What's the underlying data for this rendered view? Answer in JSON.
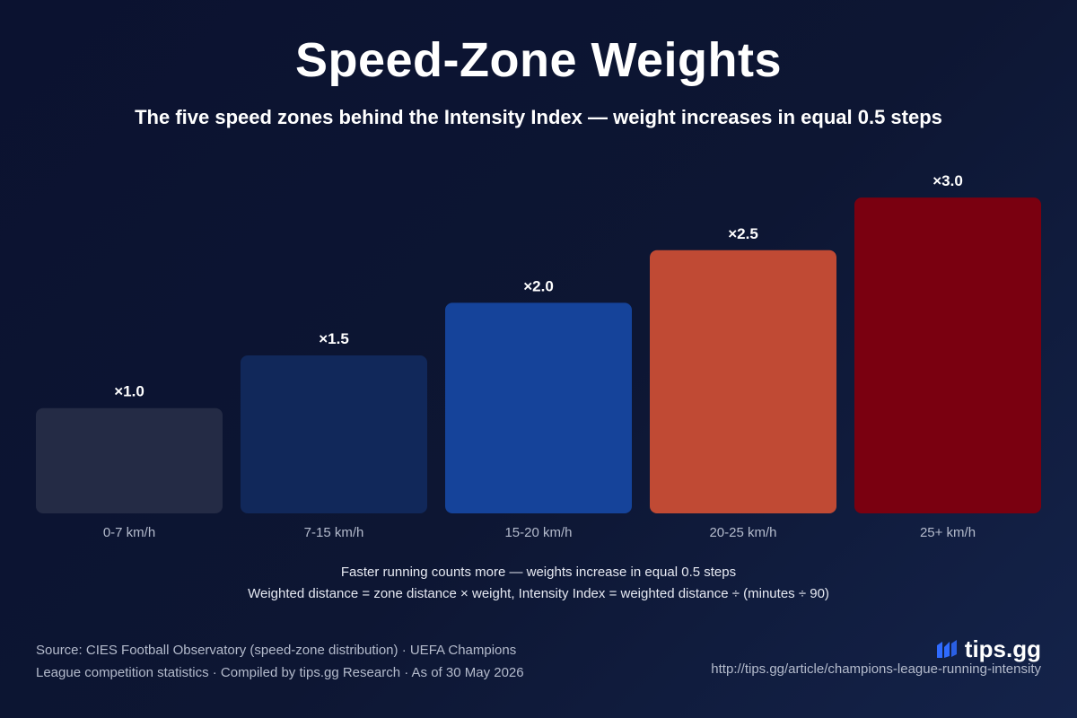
{
  "header": {
    "title": "Speed-Zone Weights",
    "subtitle": "The five speed zones behind the Intensity Index — weight increases in equal 0.5 steps"
  },
  "chart_data": {
    "type": "bar",
    "categories": [
      "0-7 km/h",
      "7-15 km/h",
      "15-20 km/h",
      "20-25 km/h",
      "25+ km/h"
    ],
    "values": [
      1.0,
      1.5,
      2.0,
      2.5,
      3.0
    ],
    "data_labels": [
      "×1.0",
      "×1.5",
      "×2.0",
      "×2.5",
      "×3.0"
    ],
    "colors": [
      "#242b45",
      "#11285a",
      "#15439a",
      "#c04a34",
      "#7a0010"
    ],
    "grid": false,
    "legend": "none"
  },
  "notes": {
    "line1": "Faster running counts more — weights increase in equal 0.5 steps",
    "line2": "Weighted distance = zone distance × weight, Intensity Index = weighted distance ÷ (minutes ÷ 90)"
  },
  "footer": {
    "source_line1": "Source: CIES Football Observatory (speed-zone distribution) · UEFA Champions",
    "source_line2": "League competition statistics · Compiled by tips.gg Research · As of 30 May 2026",
    "brand_name": "tips.gg",
    "brand_icon": "tips-gg-logo-icon",
    "url": "http://tips.gg/article/champions-league-running-intensity"
  }
}
